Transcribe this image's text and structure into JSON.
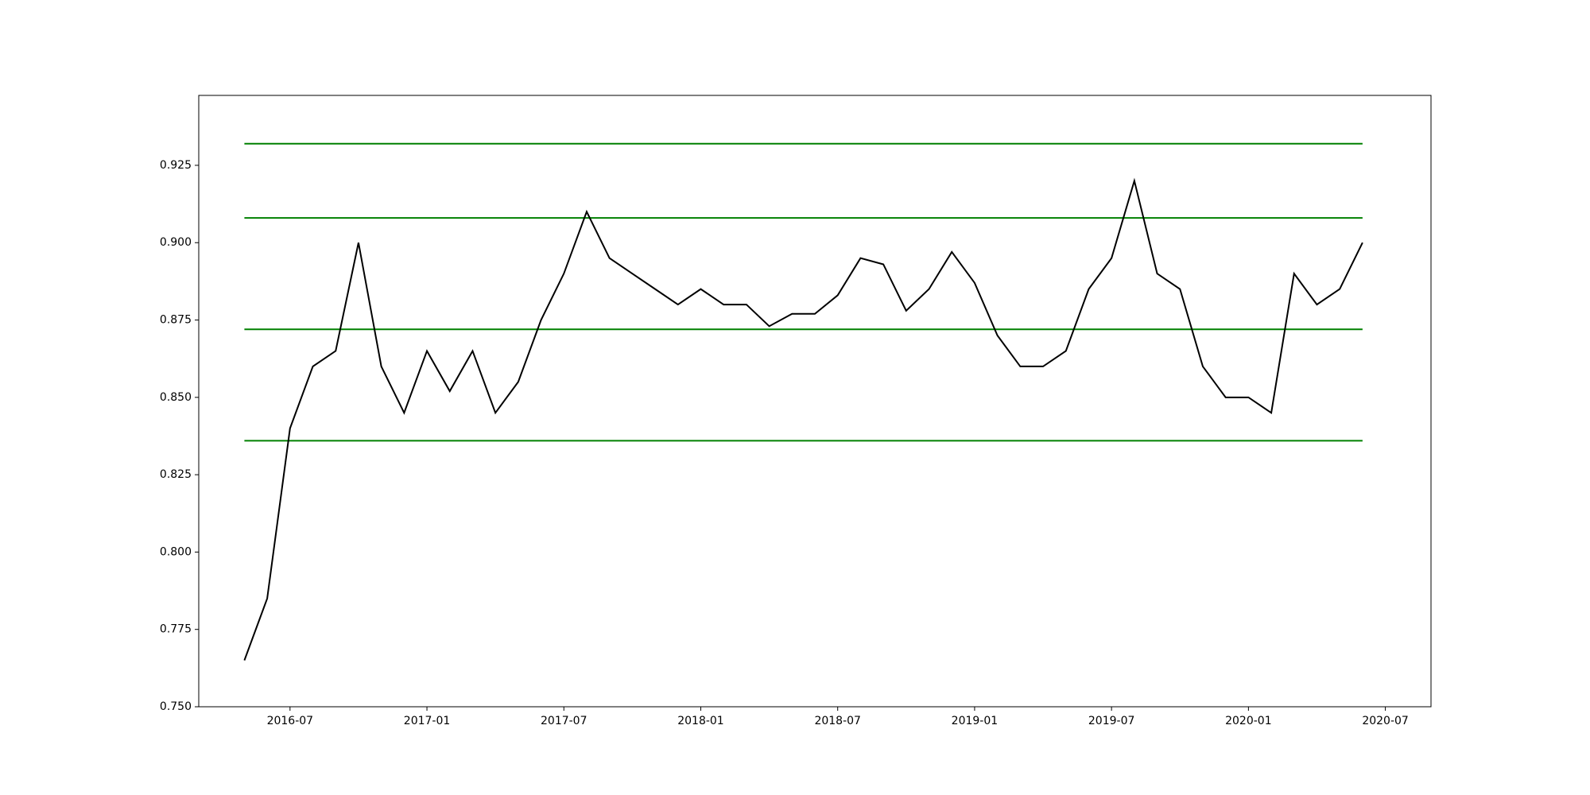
{
  "chart_data": {
    "type": "line",
    "x": [
      "2016-05",
      "2016-06",
      "2016-07",
      "2016-08",
      "2016-09",
      "2016-10",
      "2016-11",
      "2016-12",
      "2017-01",
      "2017-02",
      "2017-03",
      "2017-04",
      "2017-05",
      "2017-06",
      "2017-07",
      "2017-08",
      "2017-09",
      "2017-10",
      "2017-11",
      "2017-12",
      "2018-01",
      "2018-02",
      "2018-03",
      "2018-04",
      "2018-05",
      "2018-06",
      "2018-07",
      "2018-08",
      "2018-09",
      "2018-10",
      "2018-11",
      "2018-12",
      "2019-01",
      "2019-02",
      "2019-03",
      "2019-04",
      "2019-05",
      "2019-06",
      "2019-07",
      "2019-08",
      "2019-09",
      "2019-10",
      "2019-11",
      "2019-12",
      "2020-01",
      "2020-02",
      "2020-03",
      "2020-04",
      "2020-05",
      "2020-06"
    ],
    "series": [
      {
        "color": "#000000",
        "values": [
          0.765,
          0.785,
          0.84,
          0.86,
          0.865,
          0.9,
          0.86,
          0.845,
          0.865,
          0.852,
          0.865,
          0.845,
          0.855,
          0.875,
          0.89,
          0.91,
          0.895,
          0.89,
          0.885,
          0.88,
          0.885,
          0.88,
          0.88,
          0.873,
          0.877,
          0.877,
          0.883,
          0.895,
          0.893,
          0.878,
          0.885,
          0.897,
          0.887,
          0.87,
          0.86,
          0.86,
          0.865,
          0.885,
          0.895,
          0.92,
          0.89,
          0.885,
          0.86,
          0.85,
          0.85,
          0.845,
          0.89,
          0.88,
          0.885,
          0.9
        ]
      }
    ],
    "hlines": [
      {
        "value": 0.932,
        "color": "#008000"
      },
      {
        "value": 0.908,
        "color": "#008000"
      },
      {
        "value": 0.872,
        "color": "#008000"
      },
      {
        "value": 0.836,
        "color": "#008000"
      }
    ],
    "xlim": [
      "2016-03",
      "2020-09"
    ],
    "xticks": [
      "2016-07",
      "2017-01",
      "2017-07",
      "2018-01",
      "2018-07",
      "2019-01",
      "2019-07",
      "2020-01",
      "2020-07"
    ],
    "ylim": [
      0.75,
      0.9476
    ],
    "yticks": [
      {
        "value": 0.75,
        "label": "0.750"
      },
      0.775,
      {
        "value": 0.8,
        "label": "0.800"
      },
      0.825,
      {
        "value": 0.85,
        "label": "0.850"
      },
      0.875,
      {
        "value": 0.9,
        "label": "0.900"
      },
      0.925
    ]
  }
}
